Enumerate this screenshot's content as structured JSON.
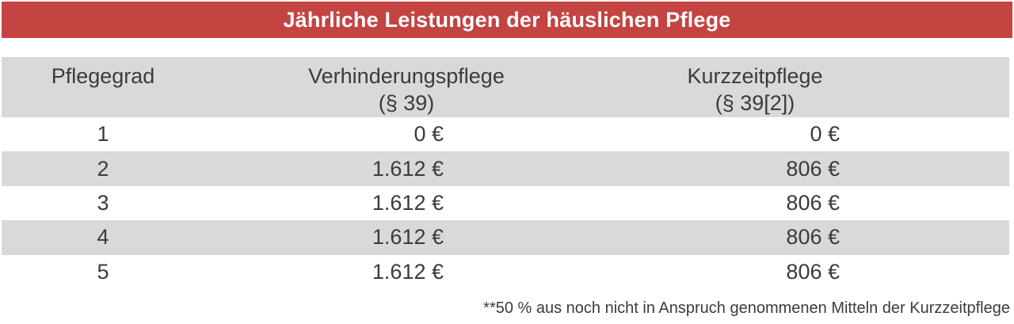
{
  "title": "Jährliche Leistungen der häuslichen Pflege",
  "table": {
    "header": [
      {
        "label": "Pflegegrad",
        "sub": ""
      },
      {
        "label": "Verhinderungspflege",
        "sub": "(§ 39)"
      },
      {
        "label": "Kurzzeitpflege",
        "sub": "(§ 39[2])"
      }
    ],
    "rows": [
      {
        "cells": [
          "1",
          "0 €",
          "0 €"
        ]
      },
      {
        "cells": [
          "2",
          "1.612 €",
          "806 €"
        ]
      },
      {
        "cells": [
          "3",
          "1.612 €",
          "806 €"
        ]
      },
      {
        "cells": [
          "4",
          "1.612 €",
          "806 €"
        ]
      },
      {
        "cells": [
          "5",
          "1.612 €",
          "806 €"
        ]
      }
    ]
  },
  "footnote": "**50 % aus noch nicht in Anspruch genommenen Mitteln der Kurzzeitpflege",
  "colors": {
    "accent_red": "#c34441",
    "row_gray": "#d9d9d9",
    "text": "#3b3b3b",
    "title_text": "#ffffff"
  },
  "chart_data": {
    "type": "table",
    "title": "Jährliche Leistungen der häuslichen Pflege",
    "columns": [
      "Pflegegrad",
      "Verhinderungspflege (§ 39)",
      "Kurzzeitpflege (§ 39[2])"
    ],
    "rows": [
      [
        "1",
        "0 €",
        "0 €"
      ],
      [
        "2",
        "1.612 €",
        "806 €"
      ],
      [
        "3",
        "1.612 €",
        "806 €"
      ],
      [
        "4",
        "1.612 €",
        "806 €"
      ],
      [
        "5",
        "1.612 €",
        "806 €"
      ]
    ],
    "footnote": "**50 % aus noch nicht in Anspruch genommenen Mitteln der Kurzzeitpflege",
    "layout": {
      "header_background": "#d9d9d9",
      "zebra_striping": "rows 2 and 4 gray",
      "value_alignment": "right",
      "grade_alignment": "center"
    }
  }
}
